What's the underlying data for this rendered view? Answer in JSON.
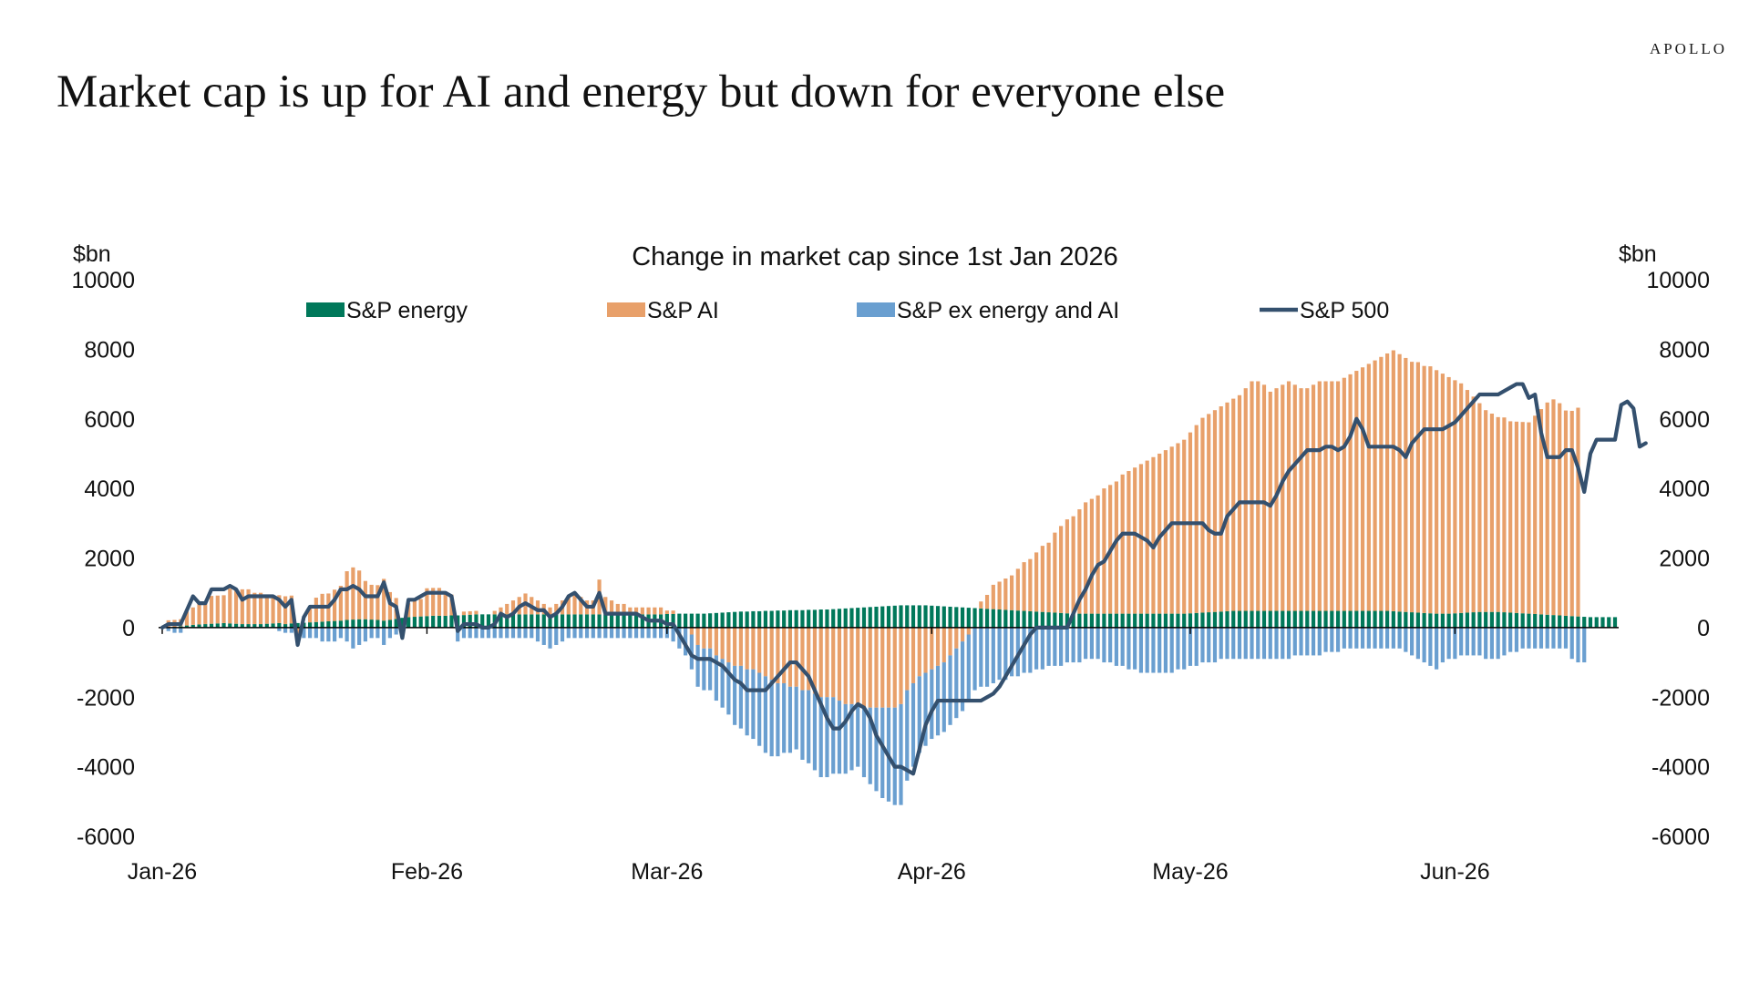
{
  "brand": "APOLLO",
  "page_title": "Market cap is up for AI and energy but down for everyone else",
  "chart_data": {
    "type": "bar",
    "title": "Change in market cap since 1st Jan 2026",
    "ylabel_left": "$bn",
    "ylabel_right": "$bn",
    "ylim": [
      -6000,
      10000
    ],
    "yticks": [
      10000,
      8000,
      6000,
      4000,
      2000,
      0,
      -2000,
      -4000,
      -6000
    ],
    "grid": false,
    "legend_position": "top",
    "x_tick_labels": [
      {
        "label": "Jan-26",
        "index": 0
      },
      {
        "label": "Feb-26",
        "index": 43
      },
      {
        "label": "Mar-26",
        "index": 82
      },
      {
        "label": "Apr-26",
        "index": 125
      },
      {
        "label": "May-26",
        "index": 167
      },
      {
        "label": "Jun-26",
        "index": 210
      }
    ],
    "series": [
      {
        "name": "S&P energy",
        "kind": "bar",
        "color": "#00785a",
        "values": [
          0,
          10,
          20,
          40,
          60,
          80,
          90,
          100,
          110,
          120,
          130,
          120,
          110,
          100,
          100,
          100,
          100,
          110,
          120,
          130,
          100,
          120,
          130,
          140,
          150,
          160,
          170,
          180,
          190,
          200,
          220,
          230,
          240,
          240,
          230,
          220,
          200,
          220,
          250,
          280,
          300,
          310,
          320,
          330,
          340,
          340,
          340,
          350,
          350,
          360,
          370,
          380,
          380,
          380,
          380,
          380,
          380,
          380,
          380,
          380,
          380,
          380,
          380,
          380,
          380,
          380,
          380,
          380,
          380,
          380,
          380,
          380,
          380,
          380,
          380,
          380,
          380,
          380,
          380,
          380,
          380,
          380,
          390,
          390,
          400,
          400,
          400,
          400,
          400,
          410,
          420,
          430,
          440,
          450,
          460,
          460,
          470,
          470,
          480,
          480,
          490,
          490,
          500,
          500,
          500,
          510,
          510,
          520,
          520,
          530,
          540,
          550,
          560,
          570,
          580,
          590,
          600,
          610,
          620,
          630,
          640,
          640,
          640,
          640,
          640,
          630,
          620,
          610,
          600,
          590,
          580,
          570,
          560,
          550,
          540,
          530,
          520,
          510,
          500,
          490,
          480,
          470,
          460,
          450,
          440,
          430,
          420,
          410,
          400,
          400,
          400,
          400,
          400,
          400,
          400,
          400,
          400,
          400,
          400,
          400,
          400,
          400,
          400,
          400,
          400,
          400,
          400,
          410,
          420,
          430,
          440,
          450,
          460,
          470,
          480,
          480,
          480,
          480,
          480,
          480,
          480,
          480,
          480,
          480,
          480,
          480,
          480,
          480,
          480,
          480,
          480,
          480,
          480,
          480,
          480,
          480,
          480,
          480,
          480,
          480,
          470,
          460,
          450,
          440,
          430,
          420,
          410,
          400,
          400,
          400,
          410,
          420,
          430,
          440,
          450,
          450,
          450,
          450,
          440,
          430,
          420,
          410,
          400,
          390,
          380,
          370,
          360,
          350,
          340,
          330,
          320,
          310,
          300,
          300,
          300,
          300,
          300
        ]
      },
      {
        "name": "S&P AI",
        "kind": "bar",
        "color": "#e8a06a",
        "values": [
          0,
          200,
          200,
          200,
          400,
          500,
          600,
          600,
          800,
          800,
          800,
          1000,
          1000,
          1000,
          1000,
          900,
          900,
          800,
          800,
          800,
          800,
          800,
          -200,
          0,
          400,
          700,
          800,
          800,
          900,
          1000,
          1400,
          1500,
          1400,
          1100,
          1000,
          1000,
          1200,
          800,
          600,
          0,
          400,
          500,
          500,
          800,
          800,
          800,
          700,
          600,
          0,
          100,
          100,
          100,
          0,
          0,
          100,
          200,
          300,
          400,
          500,
          600,
          500,
          400,
          300,
          200,
          300,
          400,
          500,
          600,
          500,
          400,
          400,
          1000,
          500,
          400,
          300,
          300,
          200,
          200,
          200,
          200,
          200,
          200,
          100,
          100,
          0,
          0,
          -200,
          -500,
          -600,
          -600,
          -800,
          -900,
          -1000,
          -1100,
          -1100,
          -1200,
          -1200,
          -1300,
          -1400,
          -1500,
          -1600,
          -1600,
          -1700,
          -1700,
          -1800,
          -1800,
          -1900,
          -2000,
          -2000,
          -2000,
          -2100,
          -2200,
          -2200,
          -2200,
          -2300,
          -2300,
          -2300,
          -2300,
          -2300,
          -2300,
          -2200,
          -1800,
          -1600,
          -1400,
          -1300,
          -1200,
          -1100,
          -1000,
          -800,
          -600,
          -400,
          -200,
          0,
          200,
          400,
          700,
          800,
          900,
          1000,
          1200,
          1400,
          1500,
          1700,
          1900,
          2000,
          2300,
          2500,
          2700,
          2800,
          3000,
          3200,
          3300,
          3400,
          3600,
          3700,
          3800,
          4000,
          4100,
          4200,
          4300,
          4400,
          4500,
          4600,
          4700,
          4800,
          4900,
          5000,
          5200,
          5400,
          5600,
          5700,
          5800,
          5900,
          6000,
          6100,
          6200,
          6400,
          6600,
          6600,
          6500,
          6300,
          6400,
          6500,
          6600,
          6500,
          6400,
          6400,
          6500,
          6600,
          6600,
          6600,
          6600,
          6700,
          6800,
          6900,
          7000,
          7100,
          7200,
          7300,
          7400,
          7500,
          7400,
          7300,
          7200,
          7200,
          7100,
          7100,
          7000,
          6900,
          6800,
          6700,
          6600,
          6400,
          6200,
          6000,
          5800,
          5700,
          5600,
          5600,
          5500,
          5500,
          5500,
          5500,
          5700,
          5900,
          6100,
          6200,
          6100,
          5900,
          5900,
          6000
        ]
      },
      {
        "name": "S&P ex energy and AI",
        "kind": "bar",
        "color": "#6a9fd0",
        "values": [
          0,
          -100,
          -150,
          -150,
          0,
          0,
          0,
          0,
          0,
          0,
          0,
          0,
          0,
          0,
          0,
          0,
          0,
          0,
          0,
          -100,
          -150,
          -150,
          -300,
          -300,
          -300,
          -300,
          -400,
          -400,
          -400,
          -300,
          -400,
          -600,
          -500,
          -400,
          -300,
          -300,
          -500,
          -300,
          -200,
          -300,
          0,
          0,
          0,
          0,
          0,
          0,
          0,
          0,
          -400,
          -300,
          -300,
          -300,
          -300,
          -300,
          -300,
          -300,
          -300,
          -300,
          -300,
          -300,
          -300,
          -400,
          -500,
          -600,
          -500,
          -400,
          -300,
          -300,
          -300,
          -300,
          -300,
          -300,
          -300,
          -300,
          -300,
          -300,
          -300,
          -300,
          -300,
          -300,
          -300,
          -300,
          -300,
          -400,
          -600,
          -800,
          -1000,
          -1200,
          -1200,
          -1200,
          -1300,
          -1400,
          -1500,
          -1700,
          -1800,
          -1900,
          -2000,
          -2100,
          -2200,
          -2200,
          -2100,
          -2000,
          -1900,
          -1800,
          -2000,
          -2100,
          -2200,
          -2300,
          -2300,
          -2200,
          -2100,
          -2000,
          -1900,
          -1800,
          -2000,
          -2200,
          -2400,
          -2600,
          -2700,
          -2800,
          -2900,
          -2600,
          -2400,
          -2200,
          -2100,
          -2000,
          -2000,
          -2000,
          -2000,
          -2000,
          -2000,
          -1900,
          -1800,
          -1700,
          -1700,
          -1600,
          -1500,
          -1500,
          -1400,
          -1400,
          -1300,
          -1300,
          -1200,
          -1200,
          -1100,
          -1100,
          -1100,
          -1000,
          -1000,
          -1000,
          -900,
          -900,
          -900,
          -1000,
          -1000,
          -1100,
          -1100,
          -1200,
          -1200,
          -1300,
          -1300,
          -1300,
          -1300,
          -1300,
          -1300,
          -1200,
          -1200,
          -1100,
          -1100,
          -1000,
          -1000,
          -1000,
          -900,
          -900,
          -900,
          -900,
          -900,
          -900,
          -900,
          -900,
          -900,
          -900,
          -900,
          -900,
          -800,
          -800,
          -800,
          -800,
          -800,
          -700,
          -700,
          -700,
          -600,
          -600,
          -600,
          -600,
          -600,
          -600,
          -600,
          -600,
          -600,
          -600,
          -700,
          -800,
          -900,
          -1000,
          -1100,
          -1200,
          -1000,
          -900,
          -900,
          -800,
          -800,
          -800,
          -800,
          -900,
          -900,
          -900,
          -800,
          -700,
          -700,
          -600,
          -600,
          -600,
          -600,
          -600,
          -600,
          -600,
          -600,
          -900,
          -1000,
          -1000
        ]
      },
      {
        "name": "S&P 500",
        "kind": "line",
        "color": "#34506e",
        "values": [
          0,
          100,
          100,
          100,
          500,
          900,
          700,
          700,
          1100,
          1100,
          1100,
          1200,
          1100,
          800,
          900,
          900,
          900,
          900,
          900,
          800,
          600,
          800,
          -500,
          300,
          600,
          600,
          600,
          600,
          800,
          1100,
          1100,
          1200,
          1100,
          900,
          900,
          900,
          1300,
          700,
          600,
          -300,
          800,
          800,
          900,
          1000,
          1000,
          1000,
          1000,
          900,
          -100,
          100,
          100,
          100,
          0,
          0,
          100,
          400,
          300,
          400,
          600,
          700,
          600,
          500,
          500,
          300,
          400,
          600,
          900,
          1000,
          800,
          600,
          600,
          1000,
          400,
          400,
          400,
          400,
          400,
          400,
          300,
          200,
          200,
          200,
          100,
          100,
          -200,
          -500,
          -800,
          -900,
          -900,
          -900,
          -1000,
          -1100,
          -1300,
          -1500,
          -1600,
          -1800,
          -1800,
          -1800,
          -1800,
          -1600,
          -1400,
          -1200,
          -1000,
          -1000,
          -1200,
          -1400,
          -1800,
          -2200,
          -2600,
          -2900,
          -2900,
          -2700,
          -2400,
          -2200,
          -2300,
          -2600,
          -3100,
          -3400,
          -3700,
          -4000,
          -4000,
          -4100,
          -4200,
          -3500,
          -2800,
          -2400,
          -2100,
          -2100,
          -2100,
          -2100,
          -2100,
          -2100,
          -2100,
          -2100,
          -2000,
          -1900,
          -1700,
          -1400,
          -1100,
          -800,
          -500,
          -200,
          0,
          0,
          0,
          0,
          0,
          0,
          400,
          800,
          1100,
          1500,
          1800,
          1900,
          2200,
          2500,
          2700,
          2700,
          2700,
          2600,
          2500,
          2300,
          2600,
          2800,
          3000,
          3000,
          3000,
          3000,
          3000,
          3000,
          2800,
          2700,
          2700,
          3200,
          3400,
          3600,
          3600,
          3600,
          3600,
          3600,
          3500,
          3800,
          4200,
          4500,
          4700,
          4900,
          5100,
          5100,
          5100,
          5200,
          5200,
          5100,
          5200,
          5500,
          6000,
          5700,
          5200,
          5200,
          5200,
          5200,
          5200,
          5100,
          4900,
          5300,
          5500,
          5700,
          5700,
          5700,
          5700,
          5800,
          5900,
          6100,
          6300,
          6500,
          6700,
          6700,
          6700,
          6700,
          6800,
          6900,
          7000,
          7000,
          6600,
          6700,
          5600,
          4900,
          4900,
          4900,
          5100,
          5100,
          4600,
          3900,
          5000,
          5400,
          5400,
          5400,
          5400,
          6400,
          6500,
          6300,
          5200,
          5300
        ]
      }
    ]
  }
}
